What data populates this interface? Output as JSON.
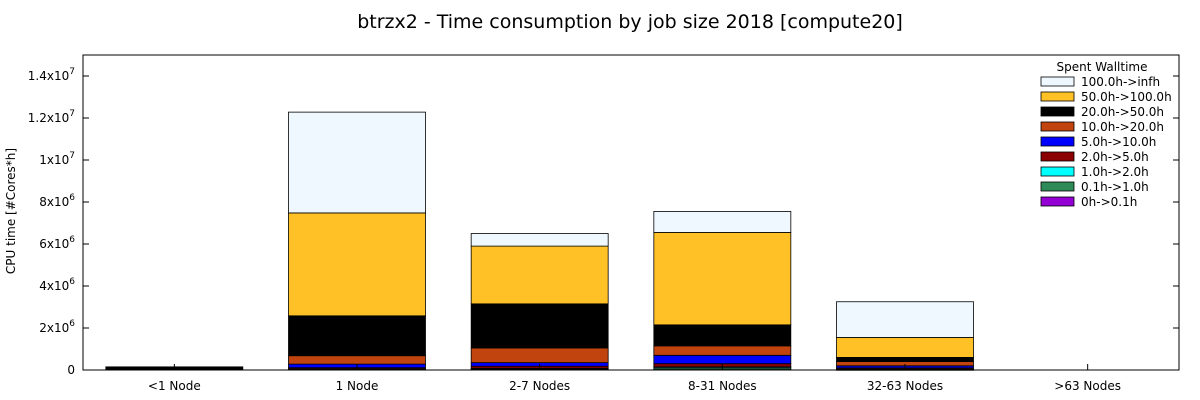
{
  "chart_data": {
    "type": "bar",
    "stacked": true,
    "title": "btrzx2 - Time consumption by job size 2018 [compute20]",
    "xlabel": "",
    "ylabel": "CPU time [#Cores*h]",
    "ylim": [
      0,
      15000000
    ],
    "yticks": [
      {
        "value": 0,
        "label": "0"
      },
      {
        "value": 2000000,
        "label": "2x10",
        "exp": "6"
      },
      {
        "value": 4000000,
        "label": "4x10",
        "exp": "6"
      },
      {
        "value": 6000000,
        "label": "6x10",
        "exp": "6"
      },
      {
        "value": 8000000,
        "label": "8x10",
        "exp": "6"
      },
      {
        "value": 10000000,
        "label": "1x10",
        "exp": "7"
      },
      {
        "value": 12000000,
        "label": "1.2x10",
        "exp": "7"
      },
      {
        "value": 14000000,
        "label": "1.4x10",
        "exp": "7"
      }
    ],
    "categories": [
      "<1 Node",
      "1 Node",
      "2-7 Nodes",
      "8-31 Nodes",
      "32-63 Nodes",
      ">63 Nodes"
    ],
    "legend_title": "Spent Walltime",
    "legend_position": "top-right",
    "grid": false,
    "series": [
      {
        "name": "0h->0.1h",
        "color": "#9400d3",
        "values": [
          0,
          20000,
          20000,
          20000,
          10000,
          0
        ]
      },
      {
        "name": "0.1h->1.0h",
        "color": "#2e8b57",
        "values": [
          0,
          20000,
          30000,
          80000,
          20000,
          0
        ]
      },
      {
        "name": "1.0h->2.0h",
        "color": "#00ffff",
        "values": [
          0,
          20000,
          30000,
          50000,
          20000,
          0
        ]
      },
      {
        "name": "2.0h->5.0h",
        "color": "#8b0000",
        "values": [
          0,
          50000,
          100000,
          150000,
          50000,
          0
        ]
      },
      {
        "name": "5.0h->10.0h",
        "color": "#0000ff",
        "values": [
          0,
          170000,
          170000,
          400000,
          100000,
          0
        ]
      },
      {
        "name": "10.0h->20.0h",
        "color": "#c1440e",
        "values": [
          0,
          400000,
          700000,
          450000,
          200000,
          0
        ]
      },
      {
        "name": "20.0h->50.0h",
        "color": "#000000",
        "values": [
          150000,
          1900000,
          2100000,
          1000000,
          200000,
          0
        ]
      },
      {
        "name": "50.0h->100.0h",
        "color": "#ffc125",
        "values": [
          0,
          4900000,
          2750000,
          4400000,
          950000,
          0
        ]
      },
      {
        "name": "100.0h->infh",
        "color": "#f0f8ff",
        "values": [
          0,
          4800000,
          600000,
          1000000,
          1700000,
          0
        ]
      }
    ]
  }
}
